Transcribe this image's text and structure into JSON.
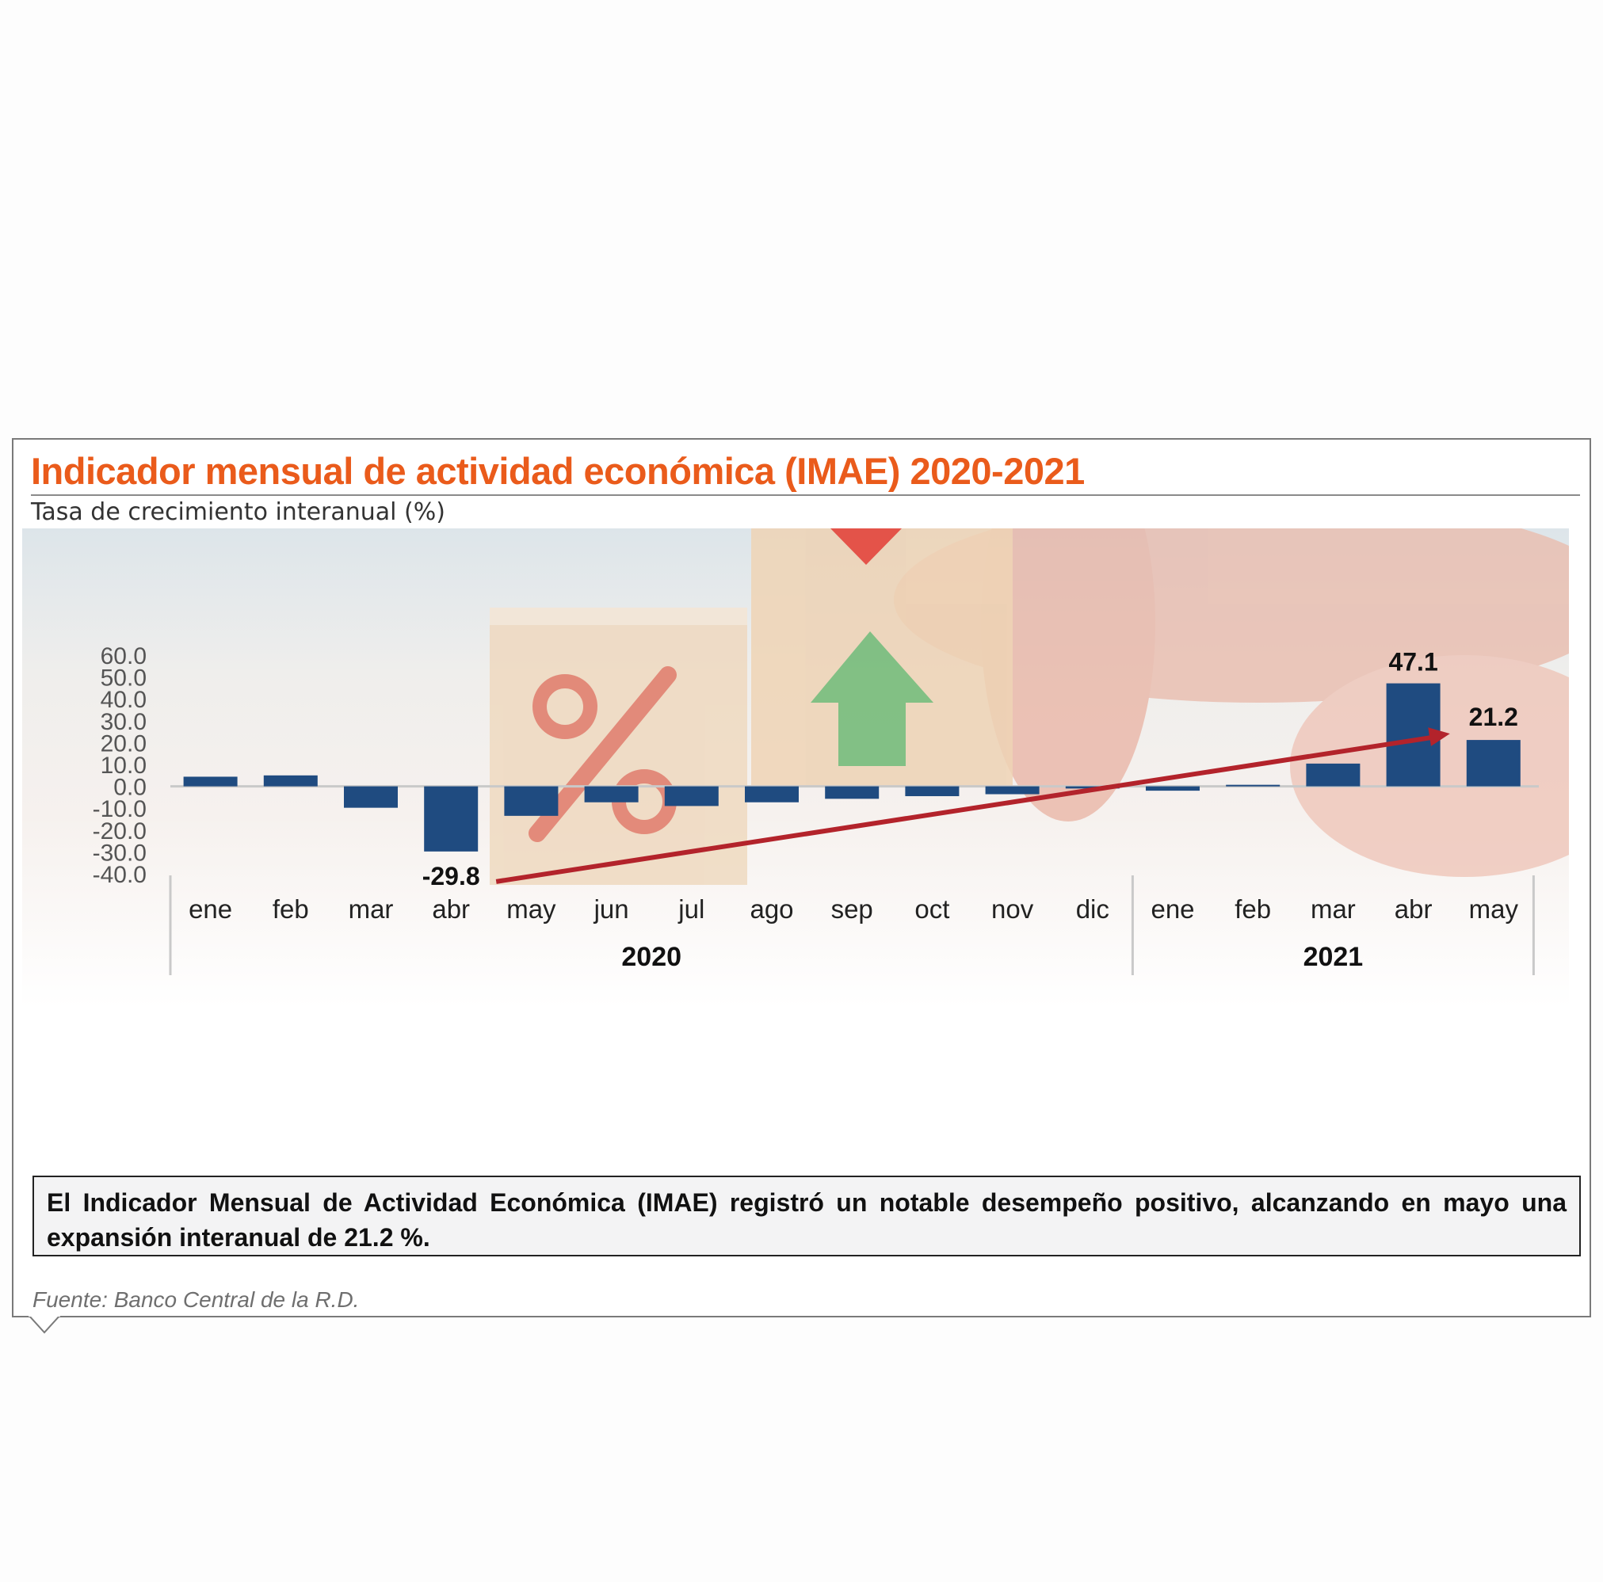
{
  "header": {
    "title": "Indicador mensual de actividad económica (IMAE) 2020-2021",
    "subtitle": "Tasa de crecimiento interanual (%)"
  },
  "summary": "El Indicador Mensual de Actividad Económica (IMAE) registró un notable desempeño positivo, alcanzando en mayo una expansión interanual de 21.2 %.",
  "source": "Fuente: Banco Central de la R.D.",
  "colors": {
    "title": "#ea5b1b",
    "bar": "#1f4b80",
    "trend_arrow": "#b3232b",
    "axis_text": "#555555"
  },
  "background_icons": [
    "wooden-block-percent-icon",
    "wooden-block-up-arrow-icon",
    "hand-icon"
  ],
  "chart_data": {
    "type": "bar",
    "title": "Indicador mensual de actividad económica (IMAE) 2020-2021",
    "subtitle": "Tasa de crecimiento interanual (%)",
    "categories": [
      "ene",
      "feb",
      "mar",
      "abr",
      "may",
      "jun",
      "jul",
      "ago",
      "sep",
      "oct",
      "nov",
      "dic",
      "ene",
      "feb",
      "mar",
      "abr",
      "may"
    ],
    "groups": [
      {
        "label": "2020",
        "count": 12
      },
      {
        "label": "2021",
        "count": 5
      }
    ],
    "values": [
      4.4,
      5.0,
      -9.8,
      -29.8,
      -13.5,
      -7.3,
      -9.0,
      -7.3,
      -5.7,
      -4.5,
      -3.6,
      -1.0,
      -2.0,
      0.7,
      10.4,
      47.1,
      21.2
    ],
    "ylim": [
      -40,
      60
    ],
    "yticks": [
      "60.0",
      "50.0",
      "40.0",
      "30.0",
      "20.0",
      "10.0",
      "0.0",
      "-10.0",
      "-20.0",
      "-30.0",
      "-40.0"
    ],
    "yticks_values": [
      60,
      50,
      40,
      30,
      20,
      10,
      0,
      -10,
      -20,
      -30,
      -40
    ],
    "data_labels": [
      {
        "index": 3,
        "text": "-29.8"
      },
      {
        "index": 15,
        "text": "47.1"
      },
      {
        "index": 16,
        "text": "21.2"
      }
    ],
    "annotation": {
      "type": "arrow",
      "from_index": 3,
      "to_index": 16
    },
    "grid": false,
    "legend": "none"
  }
}
